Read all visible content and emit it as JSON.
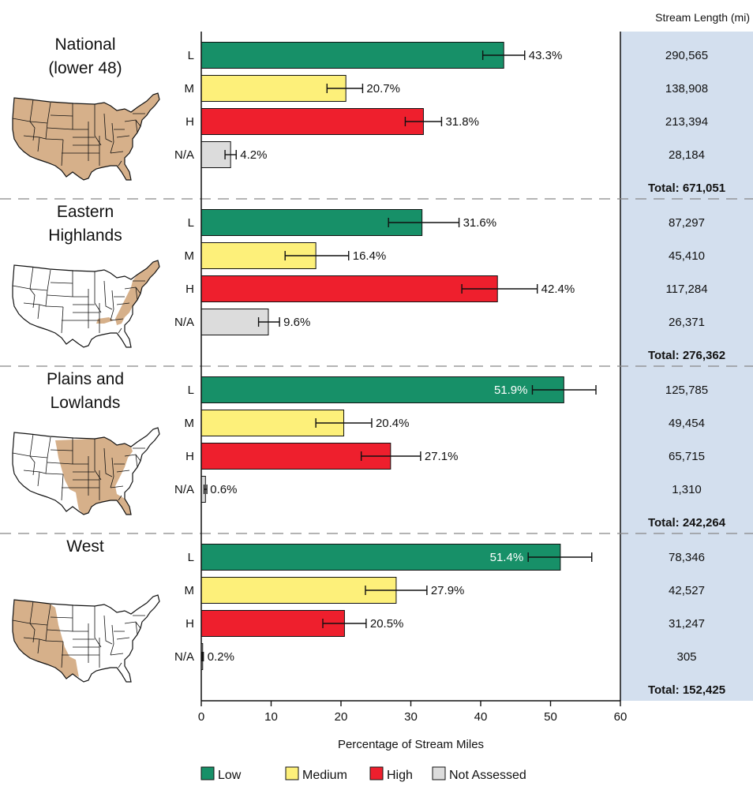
{
  "chart_data": {
    "type": "bar",
    "orientation": "horizontal",
    "xlabel": "Percentage of Stream Miles",
    "xlim": [
      0,
      60
    ],
    "xticks": [
      "0",
      "10",
      "20",
      "30",
      "40",
      "50",
      "60"
    ],
    "table_header": "Stream Length (mi)",
    "categories": [
      "L",
      "M",
      "H",
      "N/A"
    ],
    "category_colors": [
      "#179068",
      "#fdf07a",
      "#ee1f2d",
      "#dcdcdc"
    ],
    "legend": [
      "Low",
      "Medium",
      "High",
      "Not Assessed"
    ],
    "regions": [
      {
        "title_lines": [
          "National",
          "(lower 48)"
        ],
        "map_highlight": "all",
        "values": [
          43.3,
          20.7,
          31.8,
          4.2
        ],
        "value_labels": [
          "43.3%",
          "20.7%",
          "31.8%",
          "4.2%"
        ],
        "errors": [
          [
            40.3,
            46.3
          ],
          [
            18.0,
            23.1
          ],
          [
            29.2,
            34.4
          ],
          [
            3.4,
            5.0
          ]
        ],
        "stream_lengths": [
          "290,565",
          "138,908",
          "213,394",
          "28,184"
        ],
        "total": "Total: 671,051"
      },
      {
        "title_lines": [
          "Eastern",
          "Highlands"
        ],
        "map_highlight": "east",
        "values": [
          31.6,
          16.4,
          42.4,
          9.6
        ],
        "value_labels": [
          "31.6%",
          "16.4%",
          "42.4%",
          "9.6%"
        ],
        "errors": [
          [
            26.8,
            36.9
          ],
          [
            12.0,
            21.1
          ],
          [
            37.3,
            48.1
          ],
          [
            8.2,
            11.2
          ]
        ],
        "stream_lengths": [
          "87,297",
          "45,410",
          "117,284",
          "26,371"
        ],
        "total": "Total: 276,362"
      },
      {
        "title_lines": [
          "Plains and",
          "Lowlands"
        ],
        "map_highlight": "plains",
        "values": [
          51.9,
          20.4,
          27.1,
          0.6
        ],
        "value_labels": [
          "51.9%",
          "20.4%",
          "27.1%",
          "0.6%"
        ],
        "errors": [
          [
            47.4,
            56.5
          ],
          [
            16.4,
            24.4
          ],
          [
            22.9,
            31.4
          ],
          [
            0.4,
            0.8
          ]
        ],
        "stream_lengths": [
          "125,785",
          "49,454",
          "65,715",
          "1,310"
        ],
        "total": "Total: 242,264"
      },
      {
        "title_lines": [
          "West"
        ],
        "map_highlight": "west",
        "values": [
          51.4,
          27.9,
          20.5,
          0.2
        ],
        "value_labels": [
          "51.4%",
          "27.9%",
          "20.5%",
          "0.2%"
        ],
        "errors": [
          [
            46.8,
            55.9
          ],
          [
            23.5,
            32.3
          ],
          [
            17.4,
            23.6
          ],
          [
            0.1,
            0.3
          ]
        ],
        "stream_lengths": [
          "78,346",
          "42,527",
          "31,247",
          "305"
        ],
        "total": "Total: 152,425"
      }
    ]
  }
}
